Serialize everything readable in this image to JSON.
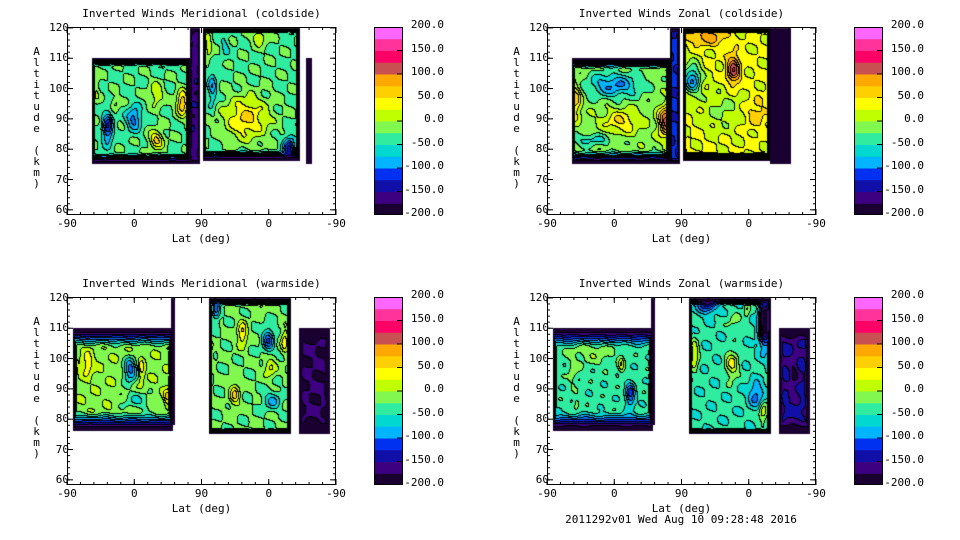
{
  "footer": {
    "stamp": "2011292v01 Wed Aug 10 09:28:48 2016"
  },
  "colormap": {
    "range": [
      -200,
      200
    ],
    "colors": [
      "#1a0030",
      "#3c0080",
      "#1010a8",
      "#0030f0",
      "#0070ff",
      "#00b4ff",
      "#00d8d0",
      "#30eca0",
      "#80f850",
      "#c0ff00",
      "#ffff00",
      "#ffd000",
      "#ffa800",
      "#e07830",
      "#c85050",
      "#ff0066",
      "#ff3399",
      "#ff66ff"
    ],
    "labels": [
      "200.0",
      "150.0",
      "100.0",
      "50.0",
      "0.0",
      "-50.0",
      "-100.0",
      "-150.0",
      "-200.0"
    ]
  },
  "axes": {
    "xticks": [
      0,
      90,
      180,
      270,
      360
    ],
    "xtick_labels": [
      "-90",
      "0",
      "90",
      "0",
      "-90"
    ],
    "yticks": [
      60,
      70,
      80,
      90,
      100,
      110,
      120
    ],
    "ytick_labels": [
      "60",
      "70",
      "80",
      "90",
      "100",
      "110",
      "120"
    ],
    "xlabel": "Lat (deg)",
    "ylabel": "Altitude (km)",
    "xlim": [
      0,
      360
    ],
    "ylim": [
      58.3,
      120.3
    ]
  },
  "chart_data": [
    {
      "type": "heatmap",
      "title": "Inverted Winds Meridional (coldside)",
      "xlabel": "Lat (deg)",
      "ylabel": "Altitude (km)",
      "blocks": [
        {
          "s": [
            33,
            165
          ],
          "alt": [
            75,
            110
          ],
          "base": -25,
          "rim": [
            5,
            4,
            3
          ],
          "blobs": [
            [
              155,
              95,
              95,
              8,
              4
            ],
            [
              120,
              83,
              75,
              10,
              3
            ],
            [
              55,
              87,
              -105,
              7,
              5
            ],
            [
              90,
              90,
              -75,
              10,
              4
            ],
            [
              65,
              95,
              35,
              6,
              2
            ],
            [
              120,
              98,
              45,
              10,
              4
            ],
            [
              40,
              100,
              25,
              4,
              5
            ]
          ]
        },
        {
          "s": [
            165,
            178
          ],
          "alt": [
            75,
            120
          ],
          "base": -165,
          "rim": [
            3,
            2,
            2
          ],
          "blobs": []
        },
        {
          "s": [
            182,
            312
          ],
          "alt": [
            76,
            120
          ],
          "base": -25,
          "rim": [
            5,
            4,
            2
          ],
          "blobs": [
            [
              240,
              90,
              75,
              30,
              7
            ],
            [
              212,
              114,
              -25,
              6,
              4
            ],
            [
              298,
              80,
              -110,
              8,
              4
            ],
            [
              258,
              117,
              45,
              10,
              3
            ],
            [
              195,
              100,
              -55,
              6,
              6
            ],
            [
              190,
              114,
              40,
              5,
              5
            ]
          ]
        },
        {
          "s": [
            320,
            328
          ],
          "alt": [
            75,
            110
          ],
          "base": -200,
          "rim": [
            1,
            1,
            1
          ],
          "blobs": []
        }
      ]
    },
    {
      "type": "heatmap",
      "title": "Inverted Winds Zonal (coldside)",
      "xlabel": "Lat (deg)",
      "ylabel": "Altitude (km)",
      "blocks": [
        {
          "s": [
            33,
            165
          ],
          "alt": [
            75,
            110
          ],
          "base": -10,
          "rim": [
            5,
            5,
            4
          ],
          "blobs": [
            [
              38,
              96,
              70,
              8,
              6
            ],
            [
              90,
              101,
              -80,
              35,
              4
            ],
            [
              160,
              89,
              130,
              10,
              5
            ],
            [
              100,
              89,
              55,
              25,
              4
            ],
            [
              60,
              83,
              -40,
              30,
              2
            ]
          ]
        },
        {
          "s": [
            165,
            178
          ],
          "alt": [
            75,
            120
          ],
          "base": -130,
          "rim": [
            3,
            2,
            2
          ],
          "blobs": []
        },
        {
          "s": [
            182,
            300
          ],
          "alt": [
            76,
            120
          ],
          "base": 25,
          "rim": [
            5,
            3,
            2
          ],
          "blobs": [
            [
              250,
              106,
              100,
              9,
              5
            ],
            [
              195,
              103,
              -110,
              12,
              5
            ],
            [
              235,
              93,
              -30,
              30,
              7
            ],
            [
              215,
              117,
              55,
              25,
              3
            ],
            [
              280,
              92,
              35,
              15,
              5
            ]
          ]
        },
        {
          "s": [
            298,
            326
          ],
          "alt": [
            75,
            120
          ],
          "base": -200,
          "rim": [
            1,
            1,
            1
          ],
          "blobs": []
        }
      ]
    },
    {
      "type": "heatmap",
      "title": "Inverted Winds Meridional (warmside)",
      "xlabel": "Lat (deg)",
      "ylabel": "Altitude (km)",
      "blocks": [
        {
          "s": [
            8,
            142
          ],
          "alt": [
            76,
            110
          ],
          "base": -5,
          "rim": [
            6,
            7,
            7
          ],
          "blobs": [
            [
              28,
              98,
              45,
              8,
              4
            ],
            [
              85,
              96,
              -95,
              9,
              4
            ],
            [
              100,
              96,
              40,
              4,
              4
            ],
            [
              135,
              87,
              55,
              5,
              3
            ],
            [
              95,
              86,
              -40,
              20,
              3
            ]
          ]
        },
        {
          "s": [
            139,
            145
          ],
          "alt": [
            78,
            120
          ],
          "base": -200,
          "rim": [
            1,
            1,
            1
          ],
          "blobs": []
        },
        {
          "s": [
            190,
            300
          ],
          "alt": [
            75,
            120
          ],
          "base": -20,
          "rim": [
            5,
            2,
            3
          ],
          "blobs": [
            [
              235,
              108,
              70,
              7,
              4
            ],
            [
              270,
              106,
              -85,
              8,
              4
            ],
            [
              225,
              88,
              65,
              7,
              4
            ],
            [
              272,
              97,
              50,
              8,
              3
            ],
            [
              292,
              106,
              55,
              5,
              4
            ],
            [
              260,
              118,
              45,
              6,
              2
            ],
            [
              192,
              102,
              45,
              4,
              3
            ],
            [
              200,
              116,
              -70,
              5,
              4
            ],
            [
              275,
              86,
              -50,
              12,
              3
            ]
          ]
        },
        {
          "s": [
            288,
            300
          ],
          "alt": [
            75,
            120
          ],
          "base": -200,
          "rim": [
            1,
            1,
            1
          ],
          "blobs": []
        },
        {
          "s": [
            310,
            352
          ],
          "alt": [
            75,
            110
          ],
          "base": -175,
          "rim": [
            8,
            6,
            6
          ],
          "blobs": []
        }
      ]
    },
    {
      "type": "heatmap",
      "title": "Inverted Winds Zonal (warmside)",
      "xlabel": "Lat (deg)",
      "ylabel": "Altitude (km)",
      "blocks": [
        {
          "s": [
            8,
            142
          ],
          "alt": [
            76,
            110
          ],
          "base": -35,
          "rim": [
            6,
            7,
            7
          ],
          "blobs": [
            [
              60,
              102,
              30,
              30,
              4
            ],
            [
              100,
              98,
              45,
              4,
              3
            ],
            [
              112,
              88,
              -85,
              6,
              4
            ],
            [
              35,
              95,
              25,
              6,
              4
            ],
            [
              40,
              85,
              30,
              4,
              2
            ]
          ]
        },
        {
          "s": [
            139,
            145
          ],
          "alt": [
            78,
            120
          ],
          "base": -200,
          "rim": [
            1,
            1,
            1
          ],
          "blobs": []
        },
        {
          "s": [
            190,
            300
          ],
          "alt": [
            75,
            120
          ],
          "base": -40,
          "rim": [
            5,
            2,
            3
          ],
          "blobs": [
            [
              198,
              101,
              65,
              6,
              5
            ],
            [
              248,
              98,
              65,
              9,
              5
            ],
            [
              215,
              118,
              -110,
              12,
              3
            ],
            [
              292,
              112,
              -160,
              8,
              8
            ],
            [
              280,
              88,
              -60,
              10,
              4
            ],
            [
              290,
              82,
              60,
              6,
              3
            ],
            [
              250,
              112,
              25,
              10,
              3
            ],
            [
              268,
              116,
              40,
              4,
              3
            ]
          ]
        },
        {
          "s": [
            288,
            300
          ],
          "alt": [
            75,
            120
          ],
          "base": -200,
          "rim": [
            1,
            1,
            1
          ],
          "blobs": []
        },
        {
          "s": [
            310,
            352
          ],
          "alt": [
            75,
            110
          ],
          "base": -150,
          "rim": [
            8,
            6,
            6
          ],
          "blobs": [
            [
              331,
              95,
              -30,
              6,
              8
            ]
          ]
        }
      ]
    }
  ]
}
